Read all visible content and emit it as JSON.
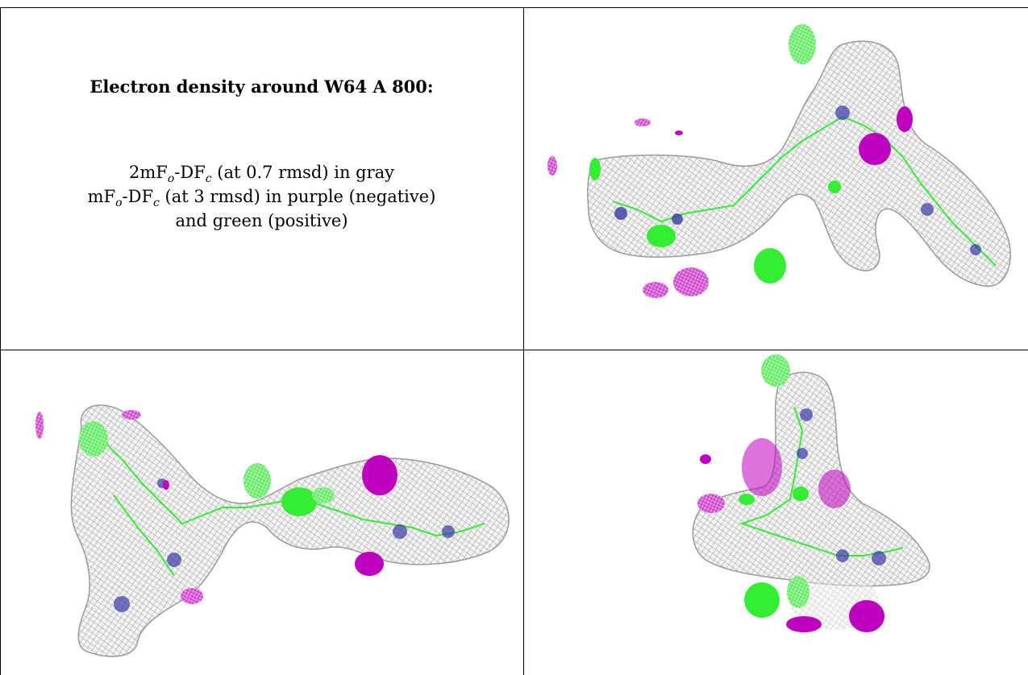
{
  "caption": {
    "title": "Electron density around W64 A 800:",
    "line1": {
      "pre": "2mF",
      "sub1": "o",
      "mid": "-DF",
      "sub2": "c",
      "post": " (at 0.7 rmsd) in gray"
    },
    "line2": {
      "pre": "mF",
      "sub1": "o",
      "mid": "-DF",
      "sub2": "c",
      "post": " (at 3 rmsd) in purple (negative)"
    },
    "line3": "and green (positive)"
  },
  "colors": {
    "map_2fofc": "#a8a8a8",
    "map_fofc_negative": "#c000c0",
    "map_fofc_positive": "#33ee33",
    "nitrogen": "#3838a8",
    "rules": "#000000"
  },
  "panels": [
    {
      "id": "top-right",
      "content": "density-view-1"
    },
    {
      "id": "bottom-left",
      "content": "density-view-2"
    },
    {
      "id": "bottom-right",
      "content": "density-view-3"
    }
  ]
}
